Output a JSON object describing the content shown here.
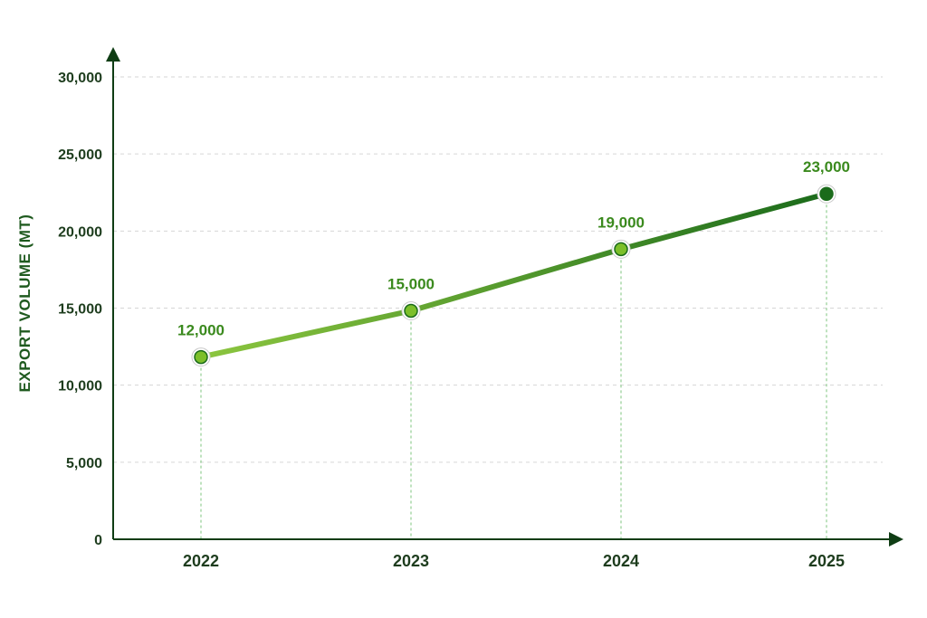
{
  "chart_data": {
    "type": "line",
    "categories": [
      "2022",
      "2023",
      "2024",
      "2025"
    ],
    "series": [
      {
        "values": [
          12000,
          15000,
          19000,
          23000
        ],
        "labels": [
          "12,000",
          "15,000",
          "19,000",
          "23,000"
        ]
      }
    ],
    "ylabel": "EXPORT VOLUME (MT)",
    "xlabel": "",
    "ylim": [
      0,
      30000
    ],
    "yticks": [
      "0",
      "5,000",
      "10,000",
      "15,000",
      "20,000",
      "25,000",
      "30,000"
    ],
    "grid": "horizontal-dashed",
    "colors": {
      "axis": "#0f3d14",
      "line_start": "#8cc63f",
      "line_end": "#1b6b1b",
      "label": "#3b8a1e",
      "marker_dark": "#1b6b1b",
      "marker_light": "#7cbf2a",
      "drop_line": "#7cc47c",
      "grid": "#d6d6d6"
    }
  }
}
